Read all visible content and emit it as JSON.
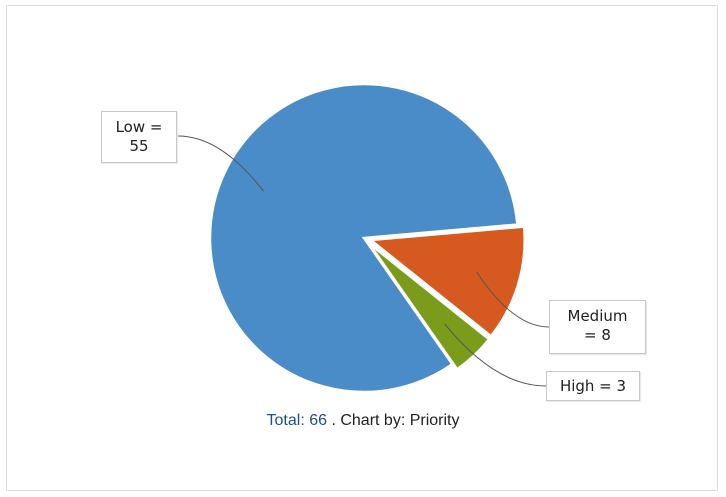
{
  "chart_data": {
    "type": "pie",
    "slices": [
      {
        "label": "Low",
        "value": 55,
        "color": "#4a8cc7",
        "label_text_1": "Low =",
        "label_text_2": "55"
      },
      {
        "label": "Medium",
        "value": 8,
        "color": "#d65a1f",
        "label_text_1": "Medium",
        "label_text_2": "= 8"
      },
      {
        "label": "High",
        "value": 3,
        "color": "#7a9c1a",
        "label_text_1": "High = 3",
        "label_text_2": ""
      }
    ],
    "total": 66
  },
  "footer": {
    "total_label": "Total: 66",
    "chart_by_label": ". Chart by: Priority"
  }
}
